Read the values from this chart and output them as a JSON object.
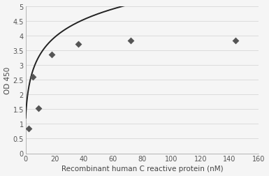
{
  "scatter_x": [
    2,
    5,
    9,
    18,
    36,
    72,
    144
  ],
  "scatter_y": [
    0.85,
    2.6,
    1.52,
    3.35,
    3.7,
    3.82,
    3.83
  ],
  "xlim": [
    0,
    160
  ],
  "ylim": [
    0,
    5
  ],
  "xticks": [
    0,
    20,
    40,
    60,
    80,
    100,
    120,
    140,
    160
  ],
  "yticks": [
    0,
    0.5,
    1.0,
    1.5,
    2.0,
    2.5,
    3.0,
    3.5,
    4.0,
    4.5,
    5.0
  ],
  "ytick_labels": [
    "0",
    "0.5",
    "1",
    "1.5",
    "2",
    "2.5",
    "3",
    "3.5",
    "4",
    "4.5",
    "5"
  ],
  "xlabel": "Recombinant human C reactive protein (nM)",
  "ylabel": "OD 450",
  "marker_color": "#555555",
  "line_color": "#222222",
  "bg_color": "#f5f5f5",
  "grid_color": "#d8d8d8",
  "marker_size": 5,
  "xlabel_fontsize": 7.5,
  "ylabel_fontsize": 7.5,
  "tick_fontsize": 7
}
